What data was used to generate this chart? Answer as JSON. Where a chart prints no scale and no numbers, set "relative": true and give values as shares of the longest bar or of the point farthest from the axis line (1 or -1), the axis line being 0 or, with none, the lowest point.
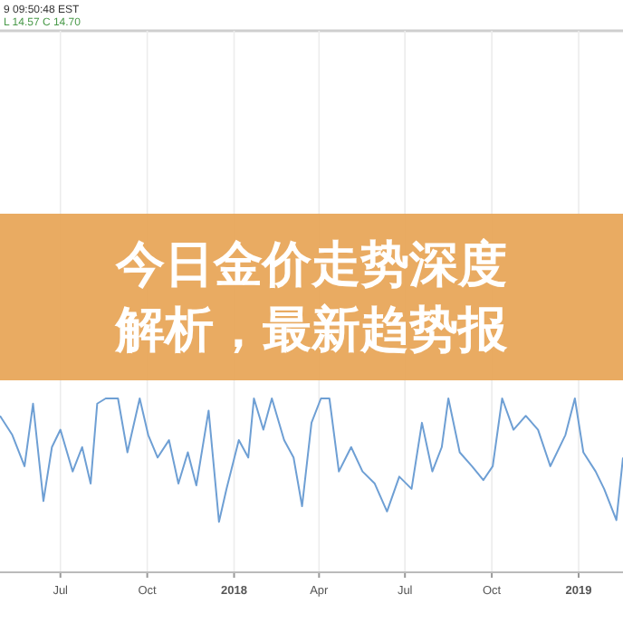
{
  "chart_data": {
    "type": "line",
    "title": "今日金价走势深度解析，最新趋势报",
    "relative": true,
    "annotations": [
      "9 09:50:48 EST",
      "L 14.57 C 14.70"
    ],
    "x": [
      "2017-04-28",
      "2017-05-11",
      "2017-05-24",
      "2017-06-02",
      "2017-06-13",
      "2017-06-22",
      "2017-07-01",
      "2017-07-14",
      "2017-07-24",
      "2017-08-02",
      "2017-08-09",
      "2017-08-18",
      "2017-08-31",
      "2017-09-10",
      "2017-09-23",
      "2017-10-02",
      "2017-10-12",
      "2017-10-24",
      "2017-11-03",
      "2017-11-13",
      "2017-11-22",
      "2017-12-05",
      "2017-12-16",
      "2017-12-24",
      "2018-01-06",
      "2018-01-16",
      "2018-01-22",
      "2018-02-01",
      "2018-02-10",
      "2018-02-23",
      "2018-03-05",
      "2018-03-14",
      "2018-03-24",
      "2018-04-03",
      "2018-04-12",
      "2018-04-22",
      "2018-05-05",
      "2018-05-17",
      "2018-05-30",
      "2018-06-12",
      "2018-06-25",
      "2018-07-08",
      "2018-07-19",
      "2018-07-30",
      "2018-08-09",
      "2018-08-16",
      "2018-08-28",
      "2018-09-10",
      "2018-09-22",
      "2018-10-02",
      "2018-10-12",
      "2018-10-24",
      "2018-11-06",
      "2018-11-19",
      "2018-12-02",
      "2018-12-18",
      "2018-12-28",
      "2019-01-06",
      "2019-01-19",
      "2019-01-28",
      "2019-02-10",
      "2019-02-17"
    ],
    "series": [
      {
        "color": "#6e9fd4",
        "values": [
          0.9,
          0.79,
          0.61,
          0.97,
          0.41,
          0.72,
          0.82,
          0.58,
          0.72,
          0.51,
          0.97,
          1,
          1,
          0.69,
          1,
          0.79,
          0.66,
          0.76,
          0.51,
          0.69,
          0.5,
          0.93,
          0.29,
          0.48,
          0.76,
          0.66,
          1,
          0.82,
          1,
          0.76,
          0.66,
          0.38,
          0.86,
          1,
          1,
          0.58,
          0.72,
          0.58,
          0.51,
          0.35,
          0.55,
          0.48,
          0.86,
          0.58,
          0.72,
          1,
          0.69,
          0.61,
          0.53,
          0.61,
          1,
          0.82,
          0.9,
          0.82,
          0.61,
          0.79,
          1,
          0.69,
          0.58,
          0.48,
          0.3,
          0.66
        ]
      }
    ],
    "xlim": [
      "2017-04-28",
      "2019-02-17"
    ],
    "xticks": [
      {
        "value": "2017-07-01",
        "label": "Jul"
      },
      {
        "value": "2017-10-01",
        "label": "Oct"
      },
      {
        "value": "2018-01-01",
        "label": "2018"
      },
      {
        "value": "2018-04-01",
        "label": "Apr"
      },
      {
        "value": "2018-07-01",
        "label": "Jul"
      },
      {
        "value": "2018-10-01",
        "label": "Oct"
      },
      {
        "value": "2019-01-01",
        "label": "2019"
      }
    ],
    "grid": "x",
    "marker": "none",
    "line_style": "solid"
  }
}
